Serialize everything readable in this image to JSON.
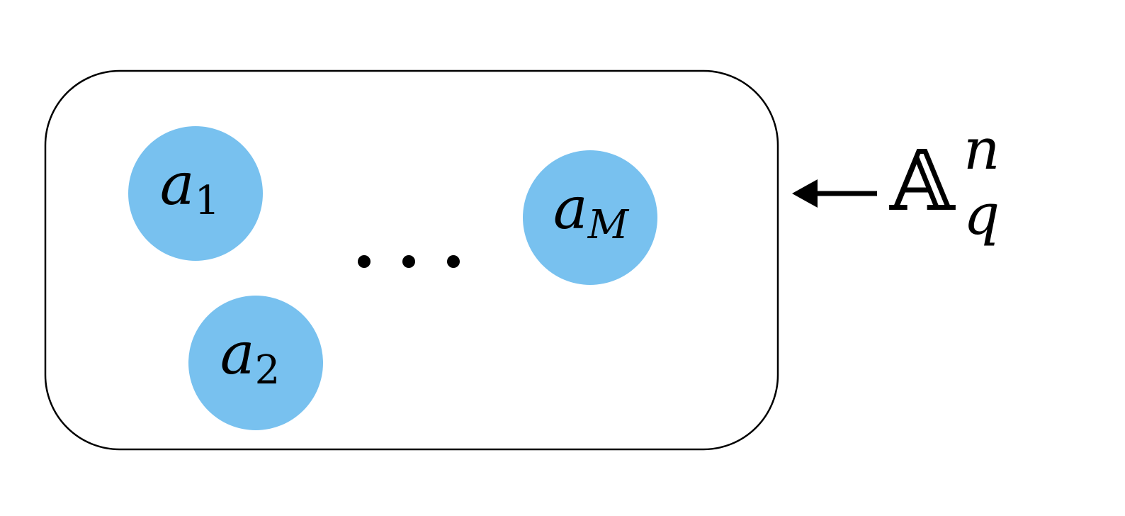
{
  "diagram": {
    "nodes": [
      {
        "id": "a1",
        "base": "a",
        "sub": "1"
      },
      {
        "id": "a2",
        "base": "a",
        "sub": "2"
      },
      {
        "id": "aM",
        "base": "a",
        "sub": "M"
      }
    ],
    "ellipsis": "...",
    "source": {
      "base": "𝔸",
      "sup": "n",
      "sub": "q"
    },
    "colors": {
      "node_fill": "#78C1EF",
      "stroke": "#000000",
      "background": "#FFFFFF"
    }
  }
}
